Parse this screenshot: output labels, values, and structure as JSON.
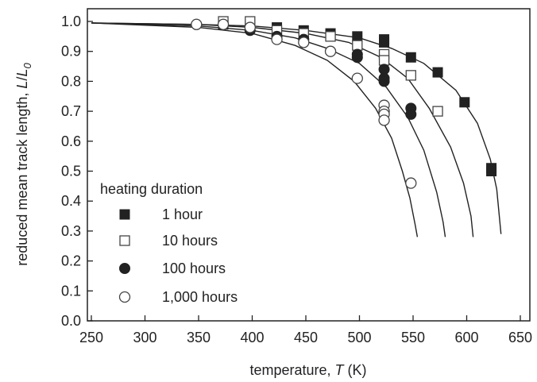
{
  "chart_data": {
    "type": "scatter",
    "xlabel": {
      "prefix": "temperature, ",
      "var": "T",
      "suffix": " (K)"
    },
    "ylabel": {
      "prefix": "reduced mean track length, ",
      "var": "L",
      "sep": "/",
      "var2": "L",
      "sub": "0"
    },
    "xlim": [
      250,
      660
    ],
    "ylim": [
      0.0,
      1.04
    ],
    "xticks": [
      "250",
      "300",
      "350",
      "400",
      "450",
      "500",
      "550",
      "600",
      "650"
    ],
    "yticks": [
      "0.0",
      "0.1",
      "0.2",
      "0.3",
      "0.4",
      "0.5",
      "0.6",
      "0.7",
      "0.8",
      "0.9",
      "1.0"
    ],
    "grid": false,
    "legend": {
      "title": "heating duration",
      "position": "left-bottom"
    },
    "series": [
      {
        "name": "1 hour",
        "marker": "filled-square",
        "points": [
          [
            373,
            0.99
          ],
          [
            398,
            0.99
          ],
          [
            423,
            0.98
          ],
          [
            448,
            0.97
          ],
          [
            473,
            0.96
          ],
          [
            498,
            0.95
          ],
          [
            523,
            0.94
          ],
          [
            523,
            0.93
          ],
          [
            548,
            0.88
          ],
          [
            573,
            0.83
          ],
          [
            598,
            0.73
          ],
          [
            623,
            0.51
          ],
          [
            623,
            0.5
          ]
        ],
        "fit": [
          [
            250,
            0.995
          ],
          [
            350,
            0.99
          ],
          [
            400,
            0.985
          ],
          [
            450,
            0.97
          ],
          [
            500,
            0.945
          ],
          [
            530,
            0.91
          ],
          [
            560,
            0.86
          ],
          [
            590,
            0.77
          ],
          [
            610,
            0.66
          ],
          [
            622,
            0.54
          ],
          [
            628,
            0.44
          ],
          [
            632,
            0.29
          ]
        ]
      },
      {
        "name": "10 hours",
        "marker": "open-square",
        "points": [
          [
            373,
            1.0
          ],
          [
            398,
            1.0
          ],
          [
            423,
            0.97
          ],
          [
            448,
            0.96
          ],
          [
            473,
            0.95
          ],
          [
            498,
            0.92
          ],
          [
            523,
            0.89
          ],
          [
            523,
            0.87
          ],
          [
            548,
            0.82
          ],
          [
            573,
            0.7
          ]
        ],
        "fit": [
          [
            250,
            0.995
          ],
          [
            350,
            0.99
          ],
          [
            400,
            0.98
          ],
          [
            450,
            0.96
          ],
          [
            490,
            0.93
          ],
          [
            520,
            0.88
          ],
          [
            545,
            0.81
          ],
          [
            565,
            0.71
          ],
          [
            585,
            0.58
          ],
          [
            597,
            0.46
          ],
          [
            604,
            0.35
          ],
          [
            606,
            0.28
          ]
        ]
      },
      {
        "name": "100 hours",
        "marker": "filled-circle",
        "points": [
          [
            348,
            0.99
          ],
          [
            373,
            0.99
          ],
          [
            398,
            0.97
          ],
          [
            423,
            0.95
          ],
          [
            448,
            0.94
          ],
          [
            473,
            0.9
          ],
          [
            498,
            0.89
          ],
          [
            498,
            0.88
          ],
          [
            523,
            0.84
          ],
          [
            523,
            0.81
          ],
          [
            523,
            0.8
          ],
          [
            548,
            0.71
          ],
          [
            548,
            0.69
          ]
        ],
        "fit": [
          [
            250,
            0.995
          ],
          [
            350,
            0.985
          ],
          [
            400,
            0.97
          ],
          [
            440,
            0.945
          ],
          [
            470,
            0.91
          ],
          [
            500,
            0.86
          ],
          [
            525,
            0.78
          ],
          [
            545,
            0.68
          ],
          [
            560,
            0.57
          ],
          [
            572,
            0.43
          ],
          [
            578,
            0.33
          ],
          [
            580,
            0.28
          ]
        ]
      },
      {
        "name": "1,000 hours",
        "marker": "open-circle",
        "points": [
          [
            348,
            0.99
          ],
          [
            373,
            0.99
          ],
          [
            398,
            0.98
          ],
          [
            423,
            0.94
          ],
          [
            448,
            0.93
          ],
          [
            473,
            0.9
          ],
          [
            498,
            0.81
          ],
          [
            523,
            0.72
          ],
          [
            523,
            0.7
          ],
          [
            523,
            0.69
          ],
          [
            523,
            0.67
          ],
          [
            548,
            0.46
          ]
        ],
        "fit": [
          [
            250,
            0.995
          ],
          [
            350,
            0.98
          ],
          [
            400,
            0.96
          ],
          [
            440,
            0.92
          ],
          [
            470,
            0.87
          ],
          [
            495,
            0.8
          ],
          [
            515,
            0.71
          ],
          [
            530,
            0.61
          ],
          [
            540,
            0.5
          ],
          [
            547,
            0.41
          ],
          [
            552,
            0.32
          ],
          [
            554,
            0.28
          ]
        ]
      }
    ]
  }
}
